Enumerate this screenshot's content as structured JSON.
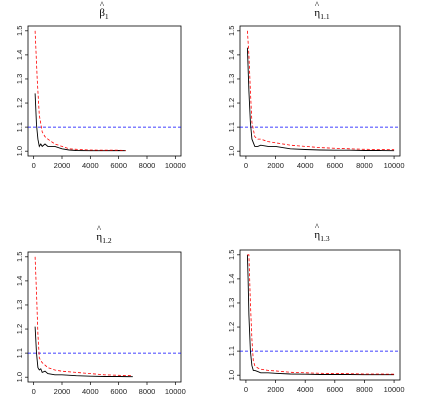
{
  "chart_data": [
    {
      "type": "line",
      "title": "β̂1",
      "title_symbol": "β",
      "title_subscript": "1",
      "xlim": [
        0,
        10000
      ],
      "ylim": [
        1.0,
        1.5
      ],
      "xticks": [
        0,
        2000,
        4000,
        6000,
        8000,
        10000
      ],
      "yticks": [
        1.0,
        1.1,
        1.2,
        1.3,
        1.4,
        1.5
      ],
      "reference_line": {
        "y": 1.1,
        "color": "#0000ff",
        "style": "dashed"
      },
      "series": [
        {
          "color": "#000000",
          "style": "solid",
          "x": [
            100,
            200,
            300,
            400,
            500,
            600,
            800,
            1000,
            1500,
            2000,
            2500,
            3000,
            4000,
            5000,
            6000,
            6500
          ],
          "y": [
            1.24,
            1.11,
            1.05,
            1.02,
            1.03,
            1.02,
            1.03,
            1.02,
            1.02,
            1.01,
            1.005,
            1.003,
            1.002,
            1.002,
            1.003,
            1.002
          ]
        },
        {
          "color": "#ff0000",
          "style": "dashed",
          "x": [
            100,
            250,
            400,
            600,
            800,
            1000,
            1500,
            2000,
            2500,
            3000,
            4000,
            5000,
            6000,
            6500
          ],
          "y": [
            1.5,
            1.3,
            1.15,
            1.08,
            1.06,
            1.05,
            1.03,
            1.02,
            1.01,
            1.008,
            1.005,
            1.004,
            1.004,
            1.003
          ]
        }
      ]
    },
    {
      "type": "line",
      "title": "η̂1.1",
      "title_symbol": "η",
      "title_subscript": "1.1",
      "xlim": [
        0,
        10000
      ],
      "ylim": [
        1.0,
        1.5
      ],
      "xticks": [
        0,
        2000,
        4000,
        6000,
        8000,
        10000
      ],
      "yticks": [
        1.0,
        1.1,
        1.2,
        1.3,
        1.4,
        1.5
      ],
      "reference_line": {
        "y": 1.1,
        "color": "#0000ff",
        "style": "dashed"
      },
      "series": [
        {
          "color": "#000000",
          "style": "solid",
          "x": [
            100,
            200,
            300,
            400,
            600,
            800,
            1000,
            1500,
            2000,
            3000,
            4000,
            5000,
            6000,
            7000,
            8000,
            9000,
            10000
          ],
          "y": [
            1.43,
            1.25,
            1.12,
            1.05,
            1.02,
            1.02,
            1.025,
            1.02,
            1.02,
            1.01,
            1.007,
            1.005,
            1.004,
            1.004,
            1.003,
            1.003,
            1.002
          ]
        },
        {
          "color": "#ff0000",
          "style": "dashed",
          "x": [
            100,
            200,
            300,
            400,
            600,
            800,
            1000,
            1500,
            2000,
            3000,
            4000,
            5000,
            6000,
            7000,
            8000,
            9000,
            10000
          ],
          "y": [
            1.5,
            1.4,
            1.25,
            1.12,
            1.06,
            1.05,
            1.05,
            1.04,
            1.035,
            1.025,
            1.02,
            1.015,
            1.012,
            1.01,
            1.008,
            1.007,
            1.006
          ]
        }
      ]
    },
    {
      "type": "line",
      "title": "η̂1.2",
      "title_symbol": "η",
      "title_subscript": "1.2",
      "xlim": [
        0,
        10000
      ],
      "ylim": [
        1.0,
        1.5
      ],
      "xticks": [
        0,
        2000,
        4000,
        6000,
        8000,
        10000
      ],
      "yticks": [
        1.0,
        1.1,
        1.2,
        1.3,
        1.4,
        1.5
      ],
      "reference_line": {
        "y": 1.1,
        "color": "#0000ff",
        "style": "dashed"
      },
      "series": [
        {
          "color": "#000000",
          "style": "solid",
          "x": [
            100,
            200,
            300,
            400,
            500,
            600,
            800,
            1000,
            1500,
            2000,
            3000,
            4000,
            5000,
            6000,
            7000
          ],
          "y": [
            1.21,
            1.1,
            1.04,
            1.03,
            1.035,
            1.02,
            1.025,
            1.015,
            1.01,
            1.01,
            1.006,
            1.004,
            1.003,
            1.003,
            1.002
          ]
        },
        {
          "color": "#ff0000",
          "style": "dashed",
          "x": [
            100,
            200,
            300,
            400,
            600,
            800,
            1000,
            1500,
            2000,
            3000,
            4000,
            5000,
            6000,
            7000
          ],
          "y": [
            1.5,
            1.35,
            1.18,
            1.08,
            1.06,
            1.05,
            1.04,
            1.03,
            1.025,
            1.02,
            1.015,
            1.01,
            1.008,
            1.006
          ]
        }
      ]
    },
    {
      "type": "line",
      "title": "η̂1.3",
      "title_symbol": "η",
      "title_subscript": "1.3",
      "xlim": [
        0,
        10000
      ],
      "ylim": [
        1.0,
        1.5
      ],
      "xticks": [
        0,
        2000,
        4000,
        6000,
        8000,
        10000
      ],
      "yticks": [
        1.0,
        1.1,
        1.2,
        1.3,
        1.4,
        1.5
      ],
      "reference_line": {
        "y": 1.1,
        "color": "#0000ff",
        "style": "dashed"
      },
      "series": [
        {
          "color": "#000000",
          "style": "solid",
          "x": [
            100,
            150,
            200,
            300,
            400,
            500,
            600,
            800,
            1000,
            1500,
            2000,
            3000,
            4000,
            5000,
            6000,
            7000,
            8000,
            9000,
            10000
          ],
          "y": [
            1.5,
            1.4,
            1.25,
            1.1,
            1.04,
            1.02,
            1.02,
            1.015,
            1.01,
            1.01,
            1.008,
            1.005,
            1.004,
            1.003,
            1.003,
            1.003,
            1.002,
            1.002,
            1.002
          ]
        },
        {
          "color": "#ff0000",
          "style": "dashed",
          "x": [
            100,
            200,
            300,
            400,
            500,
            600,
            800,
            1000,
            1500,
            2000,
            3000,
            4000,
            5000,
            6000,
            7000,
            8000,
            9000,
            10000
          ],
          "y": [
            1.5,
            1.5,
            1.3,
            1.15,
            1.06,
            1.04,
            1.03,
            1.025,
            1.02,
            1.018,
            1.012,
            1.01,
            1.008,
            1.007,
            1.006,
            1.005,
            1.005,
            1.004
          ]
        }
      ]
    }
  ]
}
